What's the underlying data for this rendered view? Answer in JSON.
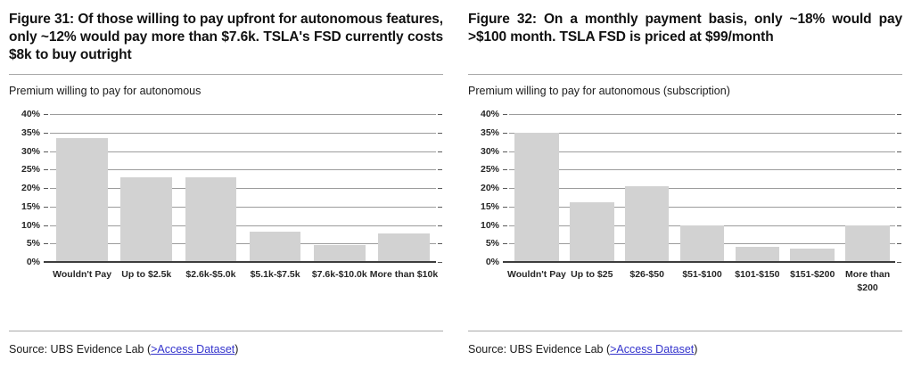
{
  "colors": {
    "bar_fill": "#d2d2d2",
    "gridline": "#9c9c9c",
    "baseline": "#3d3d3d",
    "divider": "#a9a9a9",
    "link_blue": "#3333cc",
    "text": "#1a1a1a"
  },
  "figures": [
    {
      "title": "Figure 31: Of those willing to pay upfront for autonomous features, only ~12% would pay more than $7.6k. TSLA's FSD currently costs $8k to buy outright",
      "subtitle": "Premium willing to pay for autonomous",
      "source": {
        "prefix": "Source: UBS Evidence Lab (",
        "link_text": ">Access Dataset",
        "suffix": ")"
      }
    },
    {
      "title": "Figure 32: On a monthly payment basis, only ~18% would pay >$100 month. TSLA FSD is priced at $99/month",
      "subtitle": "Premium willing to pay for autonomous (subscription)",
      "source": {
        "prefix": "Source: UBS Evidence Lab (",
        "link_text": ">Access Dataset",
        "suffix": ")"
      }
    }
  ],
  "chart_data": [
    {
      "type": "bar",
      "title": "Premium willing to pay for autonomous",
      "categories": [
        "Wouldn't Pay",
        "Up to $2.5k",
        "$2.6k-$5.0k",
        "$5.1k-$7.5k",
        "$7.6k-$10.0k",
        "More than $10k"
      ],
      "values": [
        33.4,
        23.0,
        22.8,
        8.1,
        4.7,
        7.7
      ],
      "unit": "%",
      "ylabel": "",
      "xlabel": "",
      "ylim": [
        0,
        40
      ],
      "ytick_step": 5,
      "grid": true,
      "legend": "none",
      "bar_color": "#d2d2d2"
    },
    {
      "type": "bar",
      "title": "Premium willing to pay for autonomous (subscription)",
      "categories": [
        "Wouldn't Pay",
        "Up to $25",
        "$26-$50",
        "$51-$100",
        "$101-$150",
        "$151-$200",
        "More than $200"
      ],
      "values": [
        35.0,
        16.2,
        20.5,
        10.0,
        4.2,
        3.7,
        9.9
      ],
      "unit": "%",
      "ylabel": "",
      "xlabel": "",
      "ylim": [
        0,
        40
      ],
      "ytick_step": 5,
      "grid": true,
      "legend": "none",
      "bar_color": "#d2d2d2"
    }
  ]
}
